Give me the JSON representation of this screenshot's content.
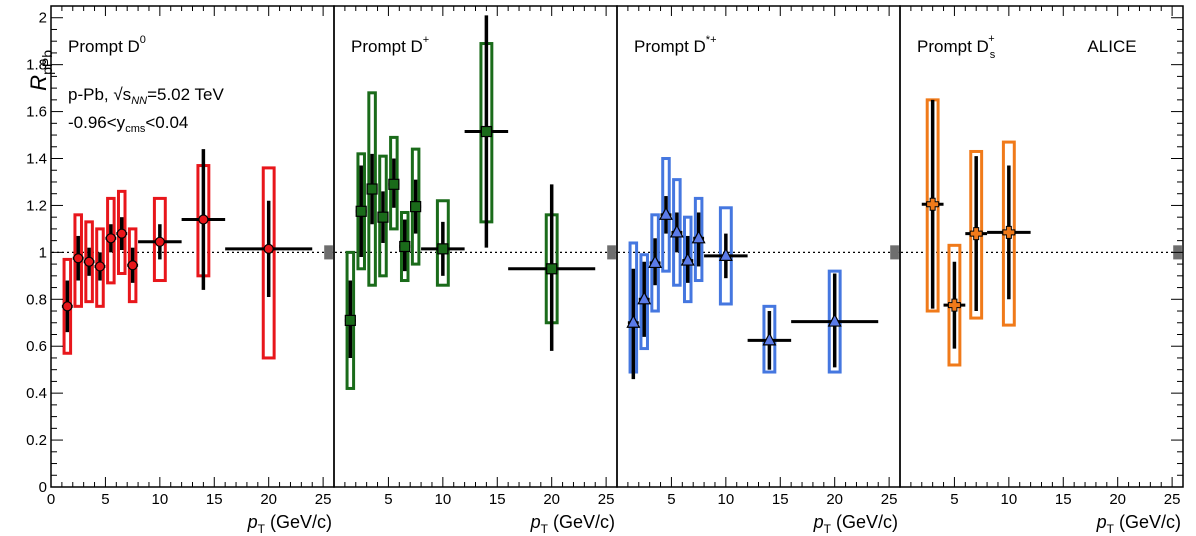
{
  "figure": {
    "ylabel_main": "R",
    "ylabel_sub": "pPb",
    "xlabel_main": "p",
    "xlabel_sub": "T",
    "xlabel_units": " (GeV/c)",
    "system_text": "p-Pb, √s",
    "system_sub": "NN",
    "system_energy": "=5.02 TeV",
    "rapidity_text": "-0.96<y",
    "rapidity_sub": "cms",
    "rapidity_range": "<0.04",
    "experiment": "ALICE"
  },
  "chart_data": [
    {
      "type": "scatter",
      "panel": "Prompt D0",
      "title": "Prompt D",
      "title_sup": "0",
      "title_sub": "",
      "color": "#e8161b",
      "stat_color": "#000000",
      "marker": "circle",
      "xlim": [
        0,
        26
      ],
      "ylim": [
        0,
        2.05
      ],
      "xticks": [
        0,
        5,
        10,
        15,
        20,
        25
      ],
      "yticks": [
        0,
        0.2,
        0.4,
        0.6,
        0.8,
        1,
        1.2,
        1.4,
        1.6,
        1.8,
        2
      ],
      "reference_line": 1,
      "norm_uncertainty": [
        0.97,
        1.03
      ],
      "points": [
        {
          "x": 1.5,
          "xlo": 1,
          "xhi": 2,
          "y": 0.77,
          "stat": [
            0.66,
            0.88
          ],
          "syst": [
            0.57,
            0.97
          ]
        },
        {
          "x": 2.5,
          "xlo": 2,
          "xhi": 3,
          "y": 0.975,
          "stat": [
            0.88,
            1.07
          ],
          "syst": [
            0.77,
            1.16
          ]
        },
        {
          "x": 3.5,
          "xlo": 3,
          "xhi": 4,
          "y": 0.96,
          "stat": [
            0.9,
            1.02
          ],
          "syst": [
            0.79,
            1.13
          ]
        },
        {
          "x": 4.5,
          "xlo": 4,
          "xhi": 5,
          "y": 0.94,
          "stat": [
            0.88,
            1.0
          ],
          "syst": [
            0.77,
            1.1
          ]
        },
        {
          "x": 5.5,
          "xlo": 5,
          "xhi": 6,
          "y": 1.06,
          "stat": [
            1.0,
            1.12
          ],
          "syst": [
            0.87,
            1.23
          ]
        },
        {
          "x": 6.5,
          "xlo": 6,
          "xhi": 7,
          "y": 1.08,
          "stat": [
            1.01,
            1.15
          ],
          "syst": [
            0.91,
            1.26
          ]
        },
        {
          "x": 7.5,
          "xlo": 7,
          "xhi": 8,
          "y": 0.945,
          "stat": [
            0.87,
            1.02
          ],
          "syst": [
            0.79,
            1.1
          ]
        },
        {
          "x": 10,
          "xlo": 8,
          "xhi": 12,
          "y": 1.045,
          "stat": [
            0.97,
            1.12
          ],
          "syst": [
            0.88,
            1.23
          ]
        },
        {
          "x": 14,
          "xlo": 12,
          "xhi": 16,
          "y": 1.14,
          "stat": [
            0.84,
            1.44
          ],
          "syst": [
            0.9,
            1.37
          ]
        },
        {
          "x": 20,
          "xlo": 16,
          "xhi": 24,
          "y": 1.015,
          "stat": [
            0.81,
            1.22
          ],
          "syst": [
            0.55,
            1.36
          ]
        }
      ]
    },
    {
      "type": "scatter",
      "panel": "Prompt D+",
      "title": "Prompt D",
      "title_sup": "+",
      "title_sub": "",
      "color": "#1a6b1a",
      "stat_color": "#000000",
      "marker": "square",
      "xlim": [
        0,
        26
      ],
      "ylim": [
        0,
        2.05
      ],
      "xticks": [
        0,
        5,
        10,
        15,
        20,
        25
      ],
      "yticks": [
        0,
        0.2,
        0.4,
        0.6,
        0.8,
        1,
        1.2,
        1.4,
        1.6,
        1.8,
        2
      ],
      "reference_line": 1,
      "norm_uncertainty": [
        0.97,
        1.03
      ],
      "points": [
        {
          "x": 1.5,
          "xlo": 1,
          "xhi": 2,
          "y": 0.71,
          "stat": [
            0.55,
            0.88
          ],
          "syst": [
            0.42,
            1.0
          ]
        },
        {
          "x": 2.5,
          "xlo": 2,
          "xhi": 3,
          "y": 1.175,
          "stat": [
            0.98,
            1.37
          ],
          "syst": [
            0.93,
            1.42
          ]
        },
        {
          "x": 3.5,
          "xlo": 3,
          "xhi": 4,
          "y": 1.27,
          "stat": [
            1.12,
            1.42
          ],
          "syst": [
            0.86,
            1.68
          ]
        },
        {
          "x": 4.5,
          "xlo": 4,
          "xhi": 5,
          "y": 1.15,
          "stat": [
            1.04,
            1.26
          ],
          "syst": [
            0.9,
            1.41
          ]
        },
        {
          "x": 5.5,
          "xlo": 5,
          "xhi": 6,
          "y": 1.29,
          "stat": [
            1.19,
            1.4
          ],
          "syst": [
            1.1,
            1.49
          ]
        },
        {
          "x": 6.5,
          "xlo": 6,
          "xhi": 7,
          "y": 1.025,
          "stat": [
            0.92,
            1.14
          ],
          "syst": [
            0.88,
            1.17
          ]
        },
        {
          "x": 7.5,
          "xlo": 7,
          "xhi": 8,
          "y": 1.195,
          "stat": [
            1.08,
            1.31
          ],
          "syst": [
            0.95,
            1.44
          ]
        },
        {
          "x": 10,
          "xlo": 8,
          "xhi": 12,
          "y": 1.015,
          "stat": [
            0.9,
            1.13
          ],
          "syst": [
            0.86,
            1.22
          ]
        },
        {
          "x": 14,
          "xlo": 12,
          "xhi": 16,
          "y": 1.515,
          "stat": [
            1.02,
            2.01
          ],
          "syst": [
            1.13,
            1.89
          ]
        },
        {
          "x": 20,
          "xlo": 16,
          "xhi": 24,
          "y": 0.93,
          "stat": [
            0.58,
            1.29
          ],
          "syst": [
            0.7,
            1.16
          ]
        }
      ]
    },
    {
      "type": "scatter",
      "panel": "Prompt D*+",
      "title": "Prompt D",
      "title_sup": "*+",
      "title_sub": "",
      "color": "#1f3fbf",
      "syst_color": "#4577e0",
      "stat_color": "#000000",
      "marker": "triangle",
      "xlim": [
        0,
        26
      ],
      "ylim": [
        0,
        2.05
      ],
      "xticks": [
        0,
        5,
        10,
        15,
        20,
        25
      ],
      "yticks": [
        0,
        0.2,
        0.4,
        0.6,
        0.8,
        1,
        1.2,
        1.4,
        1.6,
        1.8,
        2
      ],
      "reference_line": 1,
      "norm_uncertainty": [
        0.97,
        1.03
      ],
      "points": [
        {
          "x": 1.5,
          "xlo": 1,
          "xhi": 2,
          "y": 0.7,
          "stat": [
            0.46,
            0.93
          ],
          "syst": [
            0.49,
            1.04
          ]
        },
        {
          "x": 2.5,
          "xlo": 2,
          "xhi": 3,
          "y": 0.8,
          "stat": [
            0.64,
            0.96
          ],
          "syst": [
            0.59,
            0.99
          ]
        },
        {
          "x": 3.5,
          "xlo": 3,
          "xhi": 4,
          "y": 0.955,
          "stat": [
            0.86,
            1.06
          ],
          "syst": [
            0.75,
            1.16
          ]
        },
        {
          "x": 4.5,
          "xlo": 4,
          "xhi": 5,
          "y": 1.16,
          "stat": [
            1.08,
            1.24
          ],
          "syst": [
            0.92,
            1.4
          ]
        },
        {
          "x": 5.5,
          "xlo": 5,
          "xhi": 6,
          "y": 1.085,
          "stat": [
            1.0,
            1.17
          ],
          "syst": [
            0.86,
            1.31
          ]
        },
        {
          "x": 6.5,
          "xlo": 6,
          "xhi": 7,
          "y": 0.965,
          "stat": [
            0.87,
            1.07
          ],
          "syst": [
            0.79,
            1.15
          ]
        },
        {
          "x": 7.5,
          "xlo": 7,
          "xhi": 8,
          "y": 1.06,
          "stat": [
            0.94,
            1.17
          ],
          "syst": [
            0.88,
            1.23
          ]
        },
        {
          "x": 10,
          "xlo": 8,
          "xhi": 12,
          "y": 0.985,
          "stat": [
            0.89,
            1.08
          ],
          "syst": [
            0.78,
            1.19
          ]
        },
        {
          "x": 14,
          "xlo": 12,
          "xhi": 16,
          "y": 0.625,
          "stat": [
            0.5,
            0.75
          ],
          "syst": [
            0.49,
            0.77
          ]
        },
        {
          "x": 20,
          "xlo": 16,
          "xhi": 24,
          "y": 0.705,
          "stat": [
            0.51,
            0.91
          ],
          "syst": [
            0.49,
            0.92
          ]
        }
      ]
    },
    {
      "type": "scatter",
      "panel": "Prompt Ds+",
      "title": "Prompt D",
      "title_sup": "+",
      "title_sub": "s",
      "color": "#f07a1a",
      "stat_color": "#000000",
      "marker": "cross",
      "xlim": [
        0,
        26
      ],
      "ylim": [
        0,
        2.05
      ],
      "xticks": [
        0,
        5,
        10,
        15,
        20,
        25
      ],
      "yticks": [
        0,
        0.2,
        0.4,
        0.6,
        0.8,
        1,
        1.2,
        1.4,
        1.6,
        1.8,
        2
      ],
      "reference_line": 1,
      "norm_uncertainty": [
        0.97,
        1.03
      ],
      "points": [
        {
          "x": 3,
          "xlo": 2,
          "xhi": 4,
          "y": 1.205,
          "stat": [
            0.76,
            1.65
          ],
          "syst": [
            0.75,
            1.65
          ]
        },
        {
          "x": 5,
          "xlo": 4,
          "xhi": 6,
          "y": 0.775,
          "stat": [
            0.59,
            0.96
          ],
          "syst": [
            0.52,
            1.03
          ]
        },
        {
          "x": 7,
          "xlo": 6,
          "xhi": 8,
          "y": 1.08,
          "stat": [
            0.75,
            1.41
          ],
          "syst": [
            0.72,
            1.43
          ]
        },
        {
          "x": 10,
          "xlo": 8,
          "xhi": 12,
          "y": 1.085,
          "stat": [
            0.8,
            1.37
          ],
          "syst": [
            0.69,
            1.47
          ]
        }
      ]
    }
  ]
}
